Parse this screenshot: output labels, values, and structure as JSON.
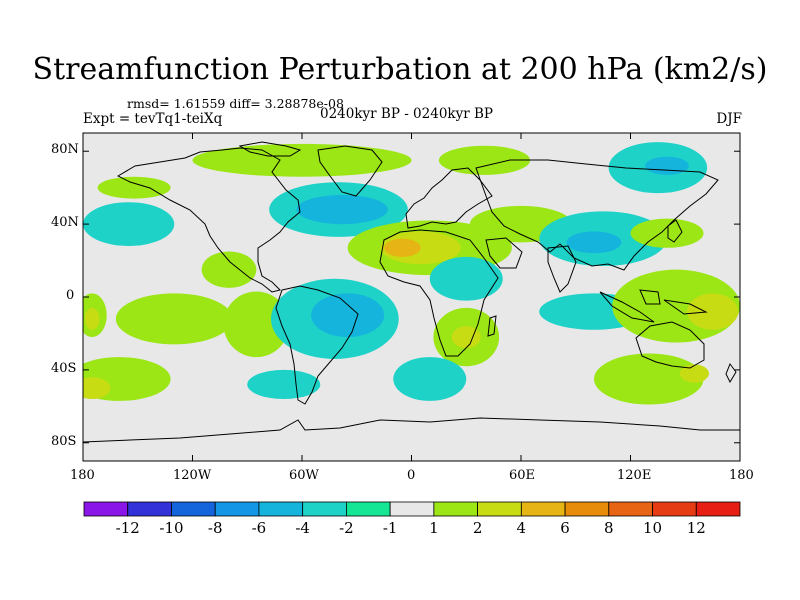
{
  "header": {
    "title": "Streamfunction Perturbation at 200 hPa (km2/s)",
    "stats": "rmsd= 1.61559 diff= 3.28878e-08",
    "experiment": "Expt = tevTq1-teiXq",
    "period": "0240kyr BP - 0240kyr BP",
    "season": "DJF"
  },
  "map": {
    "lat_ticks": [
      "80N",
      "40N",
      "0",
      "40S",
      "80S"
    ],
    "lon_ticks": [
      "180",
      "120W",
      "60W",
      "0",
      "60E",
      "120E",
      "180"
    ],
    "background_color": "#e8e8e8",
    "regions": [
      {
        "lon": -152,
        "lat": 60,
        "rx": 20,
        "ry": 6,
        "level": 2
      },
      {
        "lon": -60,
        "lat": 75,
        "rx": 60,
        "ry": 9,
        "level": 2
      },
      {
        "lon": 40,
        "lat": 75,
        "rx": 25,
        "ry": 8,
        "level": 2
      },
      {
        "lon": 135,
        "lat": 71,
        "rx": 27,
        "ry": 14,
        "level": -2
      },
      {
        "lon": 140,
        "lat": 72,
        "rx": 12,
        "ry": 5,
        "level": -4
      },
      {
        "lon": -40,
        "lat": 48,
        "rx": 38,
        "ry": 15,
        "level": -2
      },
      {
        "lon": -38,
        "lat": 48,
        "rx": 25,
        "ry": 8,
        "level": -4
      },
      {
        "lon": -155,
        "lat": 40,
        "rx": 25,
        "ry": 12,
        "level": -2
      },
      {
        "lon": 10,
        "lat": 27,
        "rx": 45,
        "ry": 15,
        "level": 2
      },
      {
        "lon": 5,
        "lat": 27,
        "rx": 22,
        "ry": 9,
        "level": 4
      },
      {
        "lon": -5,
        "lat": 27,
        "rx": 10,
        "ry": 5,
        "level": 6
      },
      {
        "lon": 60,
        "lat": 40,
        "rx": 28,
        "ry": 10,
        "level": 2
      },
      {
        "lon": 105,
        "lat": 32,
        "rx": 35,
        "ry": 15,
        "level": -2
      },
      {
        "lon": 100,
        "lat": 30,
        "rx": 15,
        "ry": 6,
        "level": -4
      },
      {
        "lon": 140,
        "lat": 35,
        "rx": 20,
        "ry": 8,
        "level": 2
      },
      {
        "lon": 30,
        "lat": 10,
        "rx": 20,
        "ry": 12,
        "level": -2
      },
      {
        "lon": -100,
        "lat": 15,
        "rx": 15,
        "ry": 10,
        "level": 2
      },
      {
        "lon": -130,
        "lat": -12,
        "rx": 32,
        "ry": 14,
        "level": 2
      },
      {
        "lon": -85,
        "lat": -15,
        "rx": 18,
        "ry": 18,
        "level": 2
      },
      {
        "lon": -42,
        "lat": -12,
        "rx": 35,
        "ry": 22,
        "level": -2
      },
      {
        "lon": -35,
        "lat": -10,
        "rx": 20,
        "ry": 12,
        "level": -4
      },
      {
        "lon": 30,
        "lat": -22,
        "rx": 18,
        "ry": 16,
        "level": 2
      },
      {
        "lon": 30,
        "lat": -22,
        "rx": 8,
        "ry": 6,
        "level": 4
      },
      {
        "lon": 100,
        "lat": -8,
        "rx": 30,
        "ry": 10,
        "level": -2
      },
      {
        "lon": 145,
        "lat": -5,
        "rx": 35,
        "ry": 20,
        "level": 2
      },
      {
        "lon": 165,
        "lat": -8,
        "rx": 14,
        "ry": 10,
        "level": 4
      },
      {
        "lon": -175,
        "lat": -10,
        "rx": 8,
        "ry": 12,
        "level": 2
      },
      {
        "lon": -175,
        "lat": -12,
        "rx": 4,
        "ry": 6,
        "level": 4
      },
      {
        "lon": -160,
        "lat": -45,
        "rx": 28,
        "ry": 12,
        "level": 2
      },
      {
        "lon": -70,
        "lat": -48,
        "rx": 20,
        "ry": 8,
        "level": -2
      },
      {
        "lon": 10,
        "lat": -45,
        "rx": 20,
        "ry": 12,
        "level": -2
      },
      {
        "lon": 130,
        "lat": -45,
        "rx": 30,
        "ry": 14,
        "level": 2
      },
      {
        "lon": 155,
        "lat": -42,
        "rx": 8,
        "ry": 5,
        "level": 4
      },
      {
        "lon": -175,
        "lat": -50,
        "rx": 10,
        "ry": 6,
        "level": 4
      }
    ]
  },
  "colorbar": {
    "labels": [
      "-12",
      "-10",
      "-8",
      "-6",
      "-4",
      "-2",
      "-1",
      "1",
      "2",
      "4",
      "6",
      "8",
      "10",
      "12"
    ],
    "colors": [
      "#8a16e8",
      "#3232d8",
      "#1464dc",
      "#1496e6",
      "#14b4dc",
      "#1ed2c8",
      "#14e696",
      "#e8e8e8",
      "#9be614",
      "#c8dc14",
      "#e6b414",
      "#e68c0a",
      "#e66414",
      "#e63c14",
      "#e61e14"
    ]
  },
  "level_colors": {
    "-4": "#14b4dc",
    "-2": "#1ed2c8",
    "2": "#9be614",
    "4": "#c8dc14",
    "6": "#e6b414"
  }
}
